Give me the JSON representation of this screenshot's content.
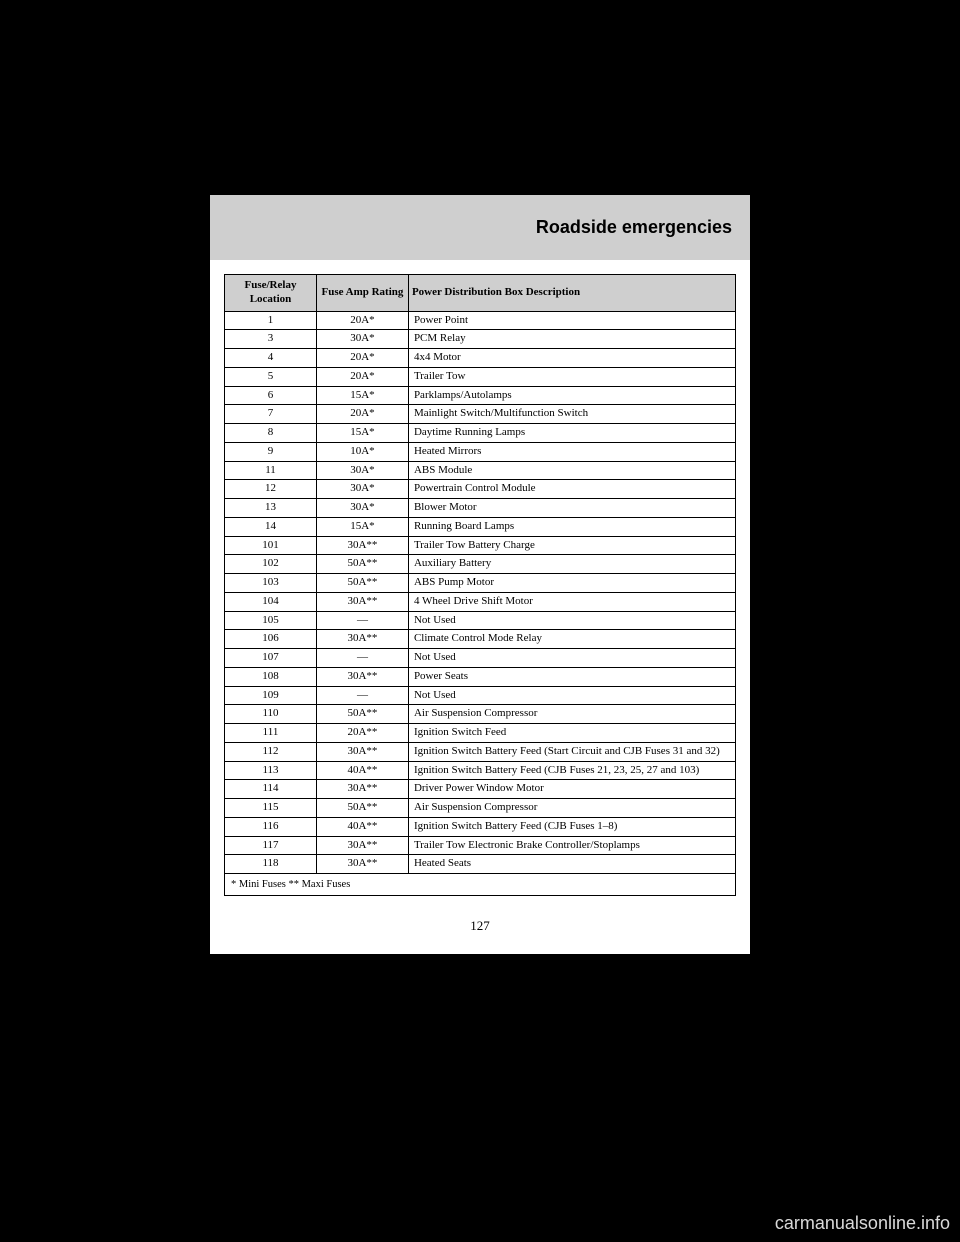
{
  "header": {
    "title": "Roadside emergencies"
  },
  "table": {
    "columns": [
      "Fuse/Relay Location",
      "Fuse Amp Rating",
      "Power Distribution Box Description"
    ],
    "rows": [
      [
        "1",
        "20A*",
        "Power Point"
      ],
      [
        "3",
        "30A*",
        "PCM Relay"
      ],
      [
        "4",
        "20A*",
        "4x4 Motor"
      ],
      [
        "5",
        "20A*",
        "Trailer Tow"
      ],
      [
        "6",
        "15A*",
        "Parklamps/Autolamps"
      ],
      [
        "7",
        "20A*",
        "Mainlight Switch/Multifunction Switch"
      ],
      [
        "8",
        "15A*",
        "Daytime Running Lamps"
      ],
      [
        "9",
        "10A*",
        "Heated Mirrors"
      ],
      [
        "11",
        "30A*",
        "ABS Module"
      ],
      [
        "12",
        "30A*",
        "Powertrain Control Module"
      ],
      [
        "13",
        "30A*",
        "Blower Motor"
      ],
      [
        "14",
        "15A*",
        "Running Board Lamps"
      ],
      [
        "101",
        "30A**",
        "Trailer Tow Battery Charge"
      ],
      [
        "102",
        "50A**",
        "Auxiliary Battery"
      ],
      [
        "103",
        "50A**",
        "ABS Pump Motor"
      ],
      [
        "104",
        "30A**",
        "4 Wheel Drive Shift Motor"
      ],
      [
        "105",
        "—",
        "Not Used"
      ],
      [
        "106",
        "30A**",
        "Climate Control Mode Relay"
      ],
      [
        "107",
        "—",
        "Not Used"
      ],
      [
        "108",
        "30A**",
        "Power Seats"
      ],
      [
        "109",
        "—",
        "Not Used"
      ],
      [
        "110",
        "50A**",
        "Air Suspension Compressor"
      ],
      [
        "111",
        "20A**",
        "Ignition Switch Feed"
      ],
      [
        "112",
        "30A**",
        "Ignition Switch Battery Feed (Start Circuit and CJB Fuses 31 and 32)"
      ],
      [
        "113",
        "40A**",
        "Ignition Switch Battery Feed (CJB Fuses 21, 23, 25, 27 and 103)"
      ],
      [
        "114",
        "30A**",
        "Driver Power Window Motor"
      ],
      [
        "115",
        "50A**",
        "Air Suspension Compressor"
      ],
      [
        "116",
        "40A**",
        "Ignition Switch Battery Feed (CJB Fuses 1–8)"
      ],
      [
        "117",
        "30A**",
        "Trailer Tow Electronic Brake Controller/Stoplamps"
      ],
      [
        "118",
        "30A**",
        "Heated Seats"
      ]
    ],
    "footnote": "* Mini Fuses ** Maxi Fuses"
  },
  "pageNumber": "127",
  "watermark": "carmanualsonline.info",
  "colors": {
    "page_bg": "#ffffff",
    "black_bg": "#000000",
    "header_bg": "#cfcfcf",
    "text": "#000000"
  }
}
